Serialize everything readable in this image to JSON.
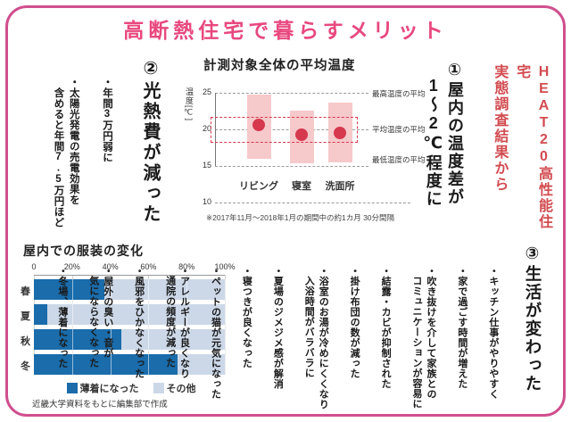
{
  "title": "高断熱住宅で暮らすメリット",
  "source_note": "HEAT20高性能住宅\n実態調査結果から",
  "section1": {
    "heading": "①屋内の温度差が\n1〜2℃程度に"
  },
  "section2": {
    "heading": "②光熱費が減った",
    "items": [
      "・年間3万円弱に",
      "・太陽光発電の売電効果を\n含めると年間7.5万円ほど"
    ]
  },
  "section3": {
    "heading": "③生活が変わった",
    "items": [
      "・キッチン仕事がやりやすく",
      "・家で過ごす時間が増えた",
      "・吹き抜けを介して家族との\nコミュニケーションが容易に",
      "・結露・カビが抑制された",
      "・掛け布団の数が減った",
      "・浴室のお湯が冷めにくくなり\n入浴時間がバラバラに",
      "・夏場のジメジメ感が解消",
      "・寝つきが良くなった",
      "・ペットの猫が元気になった",
      "・アレルギーが良くなり\n通院の頻度が減った",
      "・風邪をひかなくなった",
      "・屋外の臭い・音が\n気にならなくなった",
      "・冬場、薄着になった"
    ]
  },
  "footer": "近畿大学資料をもとに編集部で作成",
  "colors": {
    "title_pink": "#e8487e",
    "border_pink": "#d14f8e",
    "red_text": "#d24b50"
  },
  "chart_data": [
    {
      "type": "range-bar",
      "title": "計測対象全体の平均温度",
      "ylabel": "温度[℃]",
      "categories": [
        "リビング",
        "寝室",
        "洗面所"
      ],
      "series": [
        {
          "name": "最高温度の平均",
          "values": [
            24.7,
            22.6,
            23.6
          ]
        },
        {
          "name": "平均温度の平均",
          "values": [
            20.6,
            19.3,
            19.5
          ]
        },
        {
          "name": "最低温度の平均",
          "values": [
            16.0,
            15.4,
            15.5
          ]
        }
      ],
      "yticks": [
        25,
        20,
        15,
        10
      ],
      "ylim": [
        10,
        25
      ],
      "highlight_band": [
        18.2,
        21.7
      ],
      "right_labels": [
        "最高温度の平均",
        "平均温度の平均",
        "最低温度の平均"
      ],
      "right_label_values": [
        25,
        20.15,
        15.9
      ],
      "footnote": "※2017年11月〜2018年1月の期間中の約1カ月 30分間隔",
      "colors": {
        "bar": "#f6c9cb",
        "dot": "#d6384e",
        "grid": "#9a9a9a"
      }
    },
    {
      "type": "bar",
      "orientation": "horizontal",
      "stacked": true,
      "title": "屋内での服装の変化",
      "categories": [
        "春",
        "夏",
        "秋",
        "冬"
      ],
      "series": [
        {
          "name": "薄着になった",
          "values": [
            37,
            7,
            46,
            75
          ],
          "color": "#1a6cab"
        },
        {
          "name": "その他",
          "values": [
            63,
            93,
            54,
            25
          ],
          "color": "#ccd8e8"
        }
      ],
      "xticks": [
        "0",
        "20%",
        "40%",
        "60%",
        "80%",
        "100%"
      ],
      "xlim": [
        0,
        100
      ],
      "legend_position": "bottom"
    }
  ]
}
